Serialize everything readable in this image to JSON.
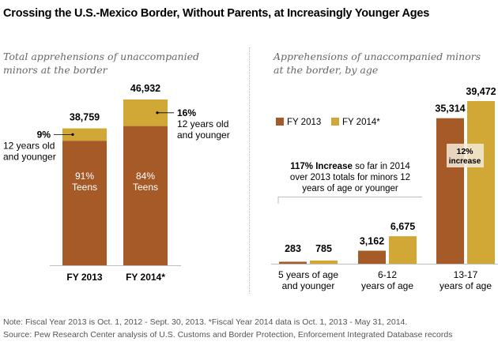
{
  "title": "Crossing the U.S.-Mexico Border, Without Parents, at Increasingly Younger Ages",
  "colors": {
    "fy2013": "#a55a28",
    "fy2014": "#d1a836",
    "axis": "#bdbdbd",
    "overlay": "#f5ead8"
  },
  "chart_data": [
    {
      "type": "bar",
      "stacked": true,
      "title": "Total apprehensions of unaccompanied minors at the border",
      "subtitle_lines": [
        "Total apprehensions of unaccompanied",
        "minors at the border"
      ],
      "categories": [
        "FY 2013",
        "FY 2014*"
      ],
      "totals": [
        38759,
        46932
      ],
      "total_labels": [
        "38,759",
        "46,932"
      ],
      "series": [
        {
          "name": "Teens",
          "values_pct": [
            91,
            84
          ],
          "labels": [
            "91%",
            "84%"
          ],
          "sublabel": "Teens"
        },
        {
          "name": "12 years old and younger",
          "values_pct": [
            9,
            16
          ],
          "labels": [
            "9%",
            "16%"
          ],
          "sublabel_lines": [
            "12 years old",
            "and younger"
          ]
        }
      ],
      "ylim": [
        0,
        55000
      ]
    },
    {
      "type": "bar",
      "title": "Apprehensions of unaccompanied minors at the border, by age",
      "subtitle_lines": [
        "Apprehensions of unaccompanied minors",
        "at the border, by age"
      ],
      "categories": [
        {
          "lines": [
            "5 years of age",
            "and younger"
          ]
        },
        {
          "lines": [
            "6-12",
            "years of age"
          ]
        },
        {
          "lines": [
            "13-17",
            "years of age"
          ]
        }
      ],
      "series": [
        {
          "name": "FY 2013",
          "values": [
            283,
            3162,
            35314
          ],
          "labels": [
            "283",
            "3,162",
            "35,314"
          ]
        },
        {
          "name": "FY 2014*",
          "values": [
            785,
            6675,
            39472
          ],
          "labels": [
            "785",
            "6,675",
            "39,472"
          ]
        }
      ],
      "legend": {
        "placement": "top-left",
        "items": [
          "FY 2013",
          "FY 2014*"
        ]
      },
      "annotations": {
        "young_increase": {
          "bold": "117% Increase",
          "rest_line1": " so far in 2014",
          "line2": "over 2013 totals for minors 12",
          "line3": "years of age or younger"
        },
        "teen_increase": {
          "line1": "12%",
          "line2": "increase"
        }
      },
      "ylim": [
        0,
        43000
      ]
    }
  ],
  "footer": {
    "note": "Note: Fiscal Year 2013 is Oct. 1, 2012 - Sept. 30, 2013. *Fiscal Year 2014 data is Oct. 1, 2013 - May 31, 2014.",
    "source": "Source: Pew Research Center analysis of U.S. Customs and Border Protection, Enforcement Integrated Database records"
  }
}
